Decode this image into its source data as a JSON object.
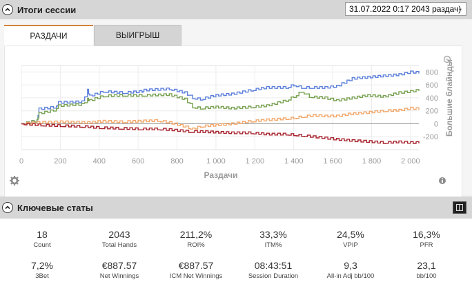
{
  "session_summary": {
    "title": "Итоги сессии",
    "session_selector": "31.07.2022 0:17 2043 раздач)"
  },
  "tabs": [
    {
      "label": "РАЗДАЧИ",
      "active": true
    },
    {
      "label": "ВЫИГРЫШ",
      "active": false
    }
  ],
  "chart_data": {
    "type": "line",
    "xlabel": "Раздачи",
    "ylabel": "Большие блайнды",
    "x_ticks": [
      "0",
      "200",
      "400",
      "600",
      "800",
      "1 000",
      "1 200",
      "1 400",
      "1 600",
      "1 800",
      "2 000"
    ],
    "y_ticks": [
      "800",
      "600",
      "400",
      "200",
      "0",
      "-200"
    ],
    "xlim": [
      0,
      2043
    ],
    "ylim": [
      -400,
      900
    ],
    "grid": true,
    "series": [
      {
        "color": "#5b7fdb",
        "x": [
          0,
          80,
          90,
          180,
          190,
          310,
          340,
          350,
          420,
          520,
          620,
          630,
          760,
          840,
          880,
          920,
          1000,
          1080,
          1180,
          1260,
          1360,
          1400,
          1440,
          1480,
          1560,
          1620,
          1700,
          1780,
          1860,
          1940,
          2000,
          2043
        ],
        "y": [
          0,
          50,
          230,
          260,
          330,
          340,
          520,
          430,
          500,
          480,
          500,
          520,
          540,
          480,
          400,
          380,
          440,
          460,
          520,
          560,
          560,
          600,
          560,
          560,
          560,
          580,
          700,
          720,
          740,
          760,
          800,
          790
        ]
      },
      {
        "color": "#77a04f",
        "x": [
          0,
          80,
          90,
          180,
          190,
          310,
          340,
          350,
          420,
          520,
          620,
          760,
          840,
          880,
          920,
          1000,
          1080,
          1180,
          1260,
          1360,
          1400,
          1440,
          1480,
          1560,
          1620,
          1700,
          1780,
          1860,
          1940,
          2000,
          2043
        ],
        "y": [
          0,
          50,
          160,
          220,
          280,
          300,
          380,
          360,
          430,
          440,
          440,
          450,
          380,
          260,
          240,
          260,
          240,
          260,
          280,
          360,
          420,
          500,
          420,
          400,
          360,
          400,
          440,
          420,
          480,
          500,
          520
        ]
      },
      {
        "color": "#f2a76a",
        "x": [
          0,
          80,
          200,
          340,
          420,
          520,
          600,
          700,
          760,
          860,
          880,
          920,
          1000,
          1080,
          1180,
          1260,
          1360,
          1400,
          1440,
          1500,
          1560,
          1620,
          1680,
          1760,
          1860,
          1940,
          2000,
          2043
        ],
        "y": [
          0,
          20,
          30,
          20,
          40,
          30,
          40,
          50,
          20,
          -60,
          -80,
          -40,
          -20,
          0,
          40,
          60,
          80,
          90,
          110,
          130,
          120,
          120,
          150,
          170,
          200,
          210,
          240,
          230
        ]
      },
      {
        "color": "#a8242e",
        "x": [
          0,
          100,
          200,
          300,
          400,
          500,
          600,
          700,
          760,
          860,
          920,
          1000,
          1080,
          1180,
          1260,
          1360,
          1400,
          1440,
          1500,
          1560,
          1620,
          1700,
          1760,
          1860,
          1940,
          2000,
          2043
        ],
        "y": [
          0,
          -20,
          -30,
          -40,
          -60,
          -70,
          -80,
          -80,
          -90,
          -120,
          -120,
          -130,
          -140,
          -140,
          -160,
          -160,
          -170,
          -180,
          -200,
          -220,
          -240,
          -260,
          -270,
          -290,
          -280,
          -290,
          -290
        ]
      }
    ]
  },
  "key_stats": {
    "title": "Ключевые статы",
    "items": [
      {
        "value": "18",
        "label": "Count"
      },
      {
        "value": "2043",
        "label": "Total Hands"
      },
      {
        "value": "211,2%",
        "label": "ROI%"
      },
      {
        "value": "33,3%",
        "label": "ITM%"
      },
      {
        "value": "24,5%",
        "label": "VPIP"
      },
      {
        "value": "16,3%",
        "label": "PFR"
      },
      {
        "value": "7,2%",
        "label": "3Bet"
      },
      {
        "value": "€887.57",
        "label": "Net Winnings"
      },
      {
        "value": "€887.57",
        "label": "ICM Net Winnings"
      },
      {
        "value": "08:43:51",
        "label": "Session Duration"
      },
      {
        "value": "9,3",
        "label": "All-in Adj bb/100"
      },
      {
        "value": "23,1",
        "label": "bb/100"
      }
    ]
  },
  "icons": {
    "collapse": "chevron-up-icon",
    "zoom": "zoom-icon",
    "settings": "gear-icon",
    "info": "info-icon",
    "panel": "panel-layout-icon"
  }
}
